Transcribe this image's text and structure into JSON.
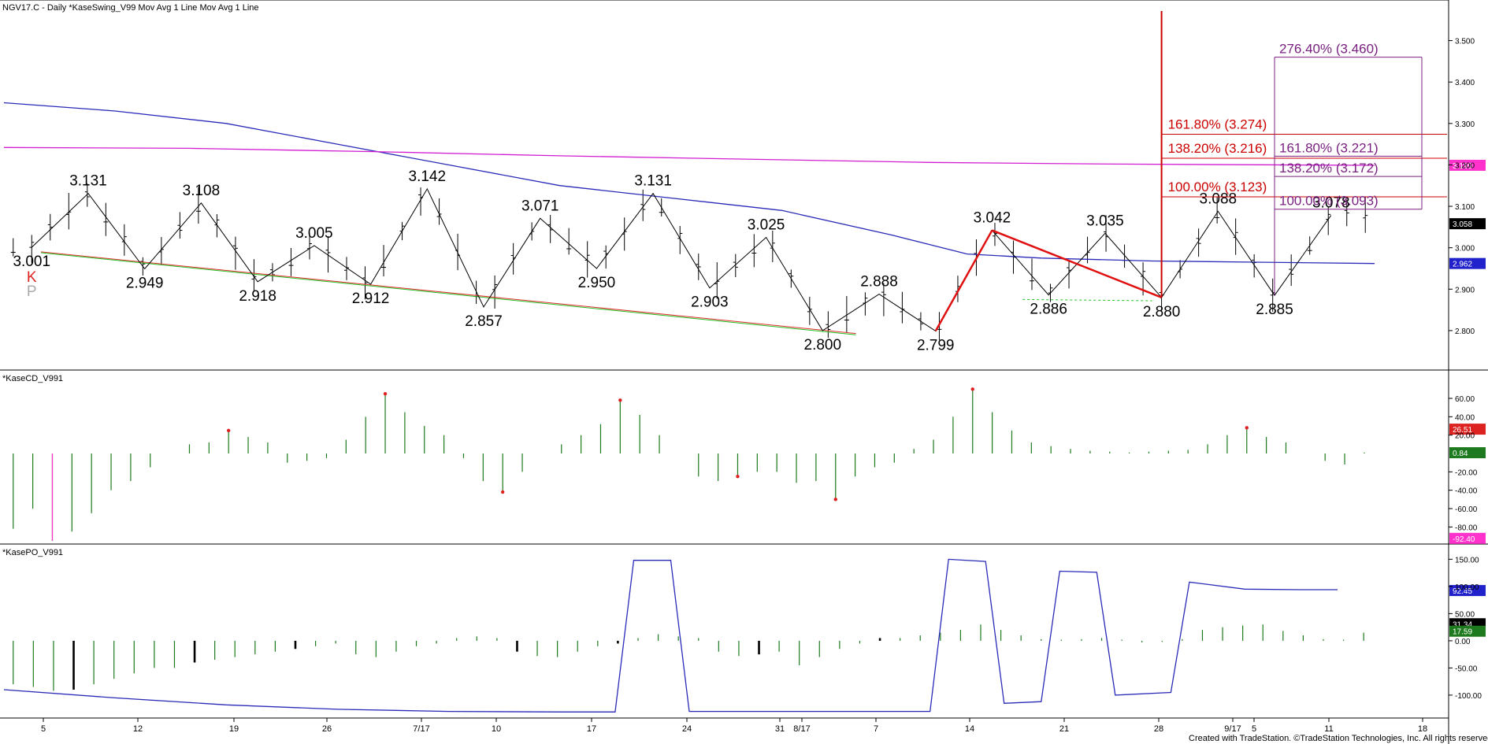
{
  "chart_data": {
    "type": "line",
    "title": "NGV17.C - Daily  *KaseSwing_V99  Mov Avg 1 Line  Mov Avg 1 Line",
    "credit": "Created with TradeStation. ©TradeStation Technologies, Inc. All rights reserved.",
    "x_ticks": [
      "5",
      "12",
      "19",
      "26",
      "7/17",
      "10",
      "17",
      "24",
      "31",
      "8/17",
      "7",
      "14",
      "21",
      "28",
      "9/17",
      "5",
      "11",
      "18"
    ],
    "price_panel": {
      "ylim": [
        2.72,
        3.56
      ],
      "y_ticks": [
        "3.500",
        "3.400",
        "3.300",
        "3.200",
        "3.100",
        "3.000",
        "2.900",
        "2.800"
      ],
      "swings": [
        {
          "label": "3.001",
          "price": 3.001,
          "pos": "below"
        },
        {
          "label": "3.131",
          "price": 3.131,
          "pos": "above"
        },
        {
          "label": "2.949",
          "price": 2.949,
          "pos": "below"
        },
        {
          "label": "3.108",
          "price": 3.108,
          "pos": "above"
        },
        {
          "label": "2.918",
          "price": 2.918,
          "pos": "below"
        },
        {
          "label": "3.005",
          "price": 3.005,
          "pos": "above"
        },
        {
          "label": "2.912",
          "price": 2.912,
          "pos": "below"
        },
        {
          "label": "3.142",
          "price": 3.142,
          "pos": "above"
        },
        {
          "label": "2.857",
          "price": 2.857,
          "pos": "below"
        },
        {
          "label": "3.071",
          "price": 3.071,
          "pos": "above"
        },
        {
          "label": "2.950",
          "price": 2.95,
          "pos": "below"
        },
        {
          "label": "3.131",
          "price": 3.131,
          "pos": "above"
        },
        {
          "label": "2.903",
          "price": 2.903,
          "pos": "below"
        },
        {
          "label": "3.025",
          "price": 3.025,
          "pos": "above"
        },
        {
          "label": "2.800",
          "price": 2.8,
          "pos": "below"
        },
        {
          "label": "2.888",
          "price": 2.888,
          "pos": "above"
        },
        {
          "label": "2.799",
          "price": 2.799,
          "pos": "below"
        },
        {
          "label": "3.042",
          "price": 3.042,
          "pos": "above"
        },
        {
          "label": "2.886",
          "price": 2.886,
          "pos": "below"
        },
        {
          "label": "3.035",
          "price": 3.035,
          "pos": "above"
        },
        {
          "label": "2.880",
          "price": 2.88,
          "pos": "below"
        },
        {
          "label": "3.088",
          "price": 3.088,
          "pos": "above"
        },
        {
          "label": "2.885",
          "price": 2.885,
          "pos": "below"
        },
        {
          "label": "3.078",
          "price": 3.078,
          "pos": "above"
        }
      ],
      "k_label": "K",
      "p_label": "P",
      "fib_red": [
        {
          "label": "161.80% (3.274)",
          "price": 3.274
        },
        {
          "label": "138.20% (3.216)",
          "price": 3.216
        },
        {
          "label": "100.00% (3.123)",
          "price": 3.123
        }
      ],
      "fib_purple": [
        {
          "label": "276.40% (3.460)",
          "price": 3.46
        },
        {
          "label": "161.80% (3.221)",
          "price": 3.221
        },
        {
          "label": "138.20% (3.172)",
          "price": 3.172
        },
        {
          "label": "100.00% (3.093)",
          "price": 3.093
        }
      ],
      "last_tags": [
        {
          "label": "3.199",
          "price": 3.199,
          "color": "#ff33cc"
        },
        {
          "label": "3.058",
          "price": 3.058,
          "color": "#000000"
        },
        {
          "label": "2.962",
          "price": 2.962,
          "color": "#2222cc"
        }
      ],
      "ma_blue": [
        [
          0,
          3.35
        ],
        [
          6,
          3.33
        ],
        [
          12,
          3.3
        ],
        [
          18,
          3.25
        ],
        [
          24,
          3.2
        ],
        [
          30,
          3.15
        ],
        [
          36,
          3.12
        ],
        [
          42,
          3.09
        ],
        [
          48,
          3.03
        ],
        [
          52,
          2.985
        ],
        [
          56,
          2.975
        ],
        [
          62,
          2.968
        ],
        [
          68,
          2.965
        ],
        [
          74,
          2.962
        ]
      ],
      "ma_magenta": [
        [
          0,
          3.242
        ],
        [
          10,
          3.24
        ],
        [
          20,
          3.232
        ],
        [
          30,
          3.222
        ],
        [
          40,
          3.214
        ],
        [
          50,
          3.206
        ],
        [
          60,
          3.202
        ],
        [
          74,
          3.199
        ]
      ],
      "support_red": [
        [
          2,
          2.99
        ],
        [
          46,
          2.793
        ]
      ],
      "support_green": [
        [
          2,
          2.988
        ],
        [
          46,
          2.79
        ]
      ],
      "swing_up_red": [
        [
          46,
          2.799
        ],
        [
          52,
          3.042
        ]
      ],
      "swing_down_red": [
        [
          52,
          3.042
        ],
        [
          62,
          2.88
        ]
      ],
      "dashed_green": [
        [
          55,
          2.875
        ],
        [
          62,
          2.872
        ]
      ]
    },
    "cd_panel": {
      "name": "*KaseCD_V991",
      "ylim": [
        -96,
        72
      ],
      "y_ticks": [
        "60.00",
        "40.00",
        "20.00",
        "-20.00",
        "-40.00",
        "-60.00",
        "-80.00"
      ],
      "values": [
        -82,
        -60,
        -95,
        -85,
        -65,
        -40,
        -30,
        -15,
        0,
        10,
        12,
        25,
        18,
        12,
        -10,
        -8,
        -5,
        15,
        40,
        65,
        45,
        30,
        20,
        -5,
        -30,
        -42,
        -20,
        0,
        10,
        20,
        32,
        58,
        42,
        20,
        0,
        -25,
        -30,
        -25,
        -20,
        -20,
        -32,
        -30,
        -50,
        -25,
        -15,
        -10,
        5,
        15,
        40,
        70,
        45,
        25,
        12,
        8,
        5,
        3,
        2,
        1,
        2,
        3,
        4,
        10,
        20,
        28,
        18,
        12,
        0,
        -8,
        -12,
        1
      ],
      "last_tags": [
        {
          "label": "26.51",
          "value": 26.51,
          "color": "#dd2222"
        },
        {
          "label": "0.84",
          "value": 0.84,
          "color": "#1e7a1e"
        },
        {
          "label": "-92.40",
          "value": -92.4,
          "color": "#ff33cc"
        }
      ]
    },
    "po_panel": {
      "name": "*KasePO_V991",
      "ylim": [
        -132,
        165
      ],
      "y_ticks": [
        "150.00",
        "100.00",
        "50.00",
        "0.00",
        "-50.00",
        "-100.00"
      ],
      "histogram": [
        -80,
        -85,
        -92,
        -90,
        -80,
        -70,
        -60,
        -50,
        -50,
        -40,
        -35,
        -30,
        -25,
        -20,
        -15,
        -10,
        -5,
        -25,
        -30,
        -20,
        -10,
        -5,
        5,
        8,
        5,
        -20,
        -28,
        -30,
        -20,
        -10,
        -5,
        5,
        12,
        8,
        5,
        -20,
        -28,
        -25,
        -20,
        -45,
        -30,
        -15,
        -5,
        5,
        5,
        10,
        15,
        20,
        30,
        20,
        10,
        3,
        2,
        3,
        5,
        2,
        -3,
        -2,
        3,
        20,
        25,
        28,
        30,
        18,
        10,
        3,
        2,
        15
      ],
      "line": [
        [
          0,
          -90
        ],
        [
          6,
          -105
        ],
        [
          12,
          -118
        ],
        [
          18,
          -126
        ],
        [
          24,
          -130
        ],
        [
          30,
          -131
        ],
        [
          33,
          -131
        ],
        [
          34,
          148
        ],
        [
          36,
          148
        ],
        [
          37,
          -130
        ],
        [
          50,
          -130
        ],
        [
          51,
          150
        ],
        [
          53,
          146
        ],
        [
          54,
          -115
        ],
        [
          56,
          -112
        ],
        [
          57,
          128
        ],
        [
          59,
          126
        ],
        [
          60,
          -100
        ],
        [
          63,
          -95
        ],
        [
          64,
          108
        ],
        [
          67,
          95
        ],
        [
          70,
          94
        ],
        [
          72,
          94
        ]
      ],
      "last_tags": [
        {
          "label": "92.45",
          "value": 92.45,
          "color": "#2222cc"
        },
        {
          "label": "31.34",
          "value": 31.34,
          "color": "#000000"
        },
        {
          "label": "17.59",
          "value": 17.59,
          "color": "#1e7a1e"
        }
      ]
    }
  }
}
